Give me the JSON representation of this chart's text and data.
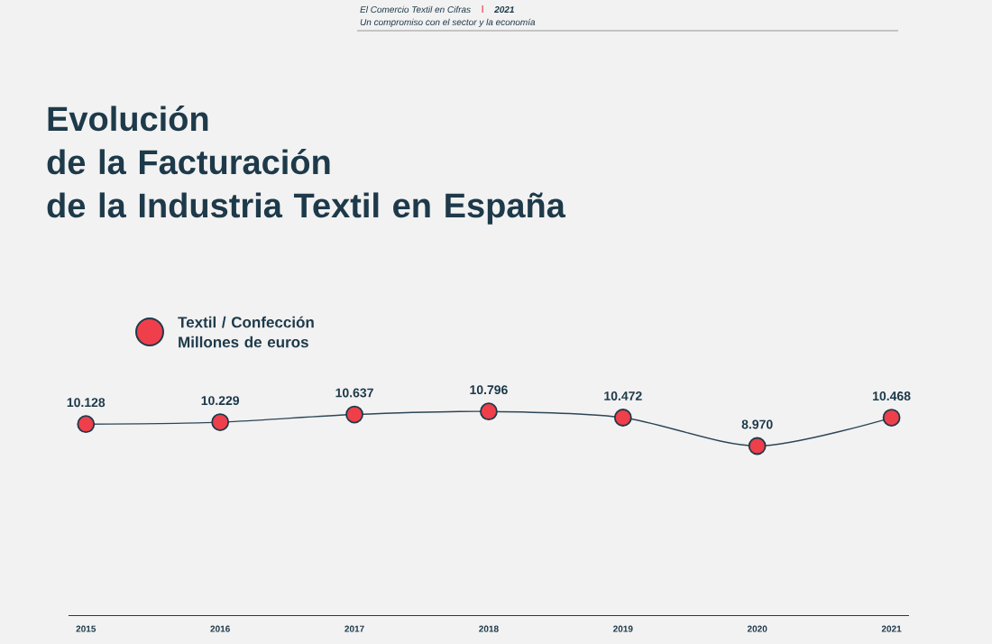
{
  "chart_data": {
    "type": "line",
    "title": "Evolución\nde la Facturación\nde la Industria Textil en España",
    "ylabel": "Millones de euros",
    "annotations": [
      "El Comercio Textil en Cifras",
      "2021",
      "Un compromiso con el sector y la economía"
    ],
    "categories": [
      "2015",
      "2016",
      "2017",
      "2018",
      "2019",
      "2020",
      "2021"
    ],
    "series": [
      {
        "name": "Textil / Confección",
        "color": "#2c4656",
        "values": [
          10128,
          10229,
          10637,
          10796,
          10472,
          8970,
          10468
        ],
        "value_labels": [
          "10.128",
          "10.229",
          "10.637",
          "10.796",
          "10.472",
          "8.970",
          "10.468"
        ]
      }
    ],
    "marker": "circle",
    "legend": "top left",
    "grid": false
  }
}
